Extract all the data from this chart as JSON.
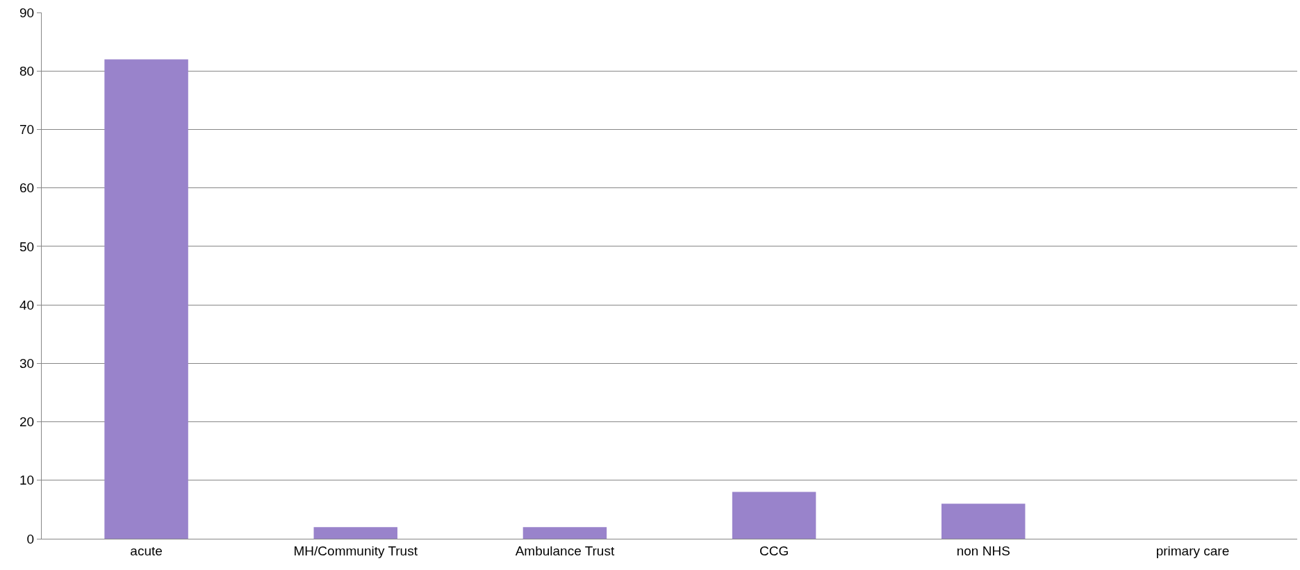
{
  "chart_data": {
    "type": "bar",
    "categories": [
      "acute",
      "MH/Community Trust",
      "Ambulance Trust",
      "CCG",
      "non NHS",
      "primary care"
    ],
    "values": [
      82,
      2,
      2,
      8,
      6,
      0
    ],
    "color": "#9983cb",
    "ylim": [
      0,
      90
    ],
    "yticks": [
      0,
      10,
      20,
      30,
      40,
      50,
      60,
      70,
      80,
      90
    ],
    "grid": "y"
  }
}
